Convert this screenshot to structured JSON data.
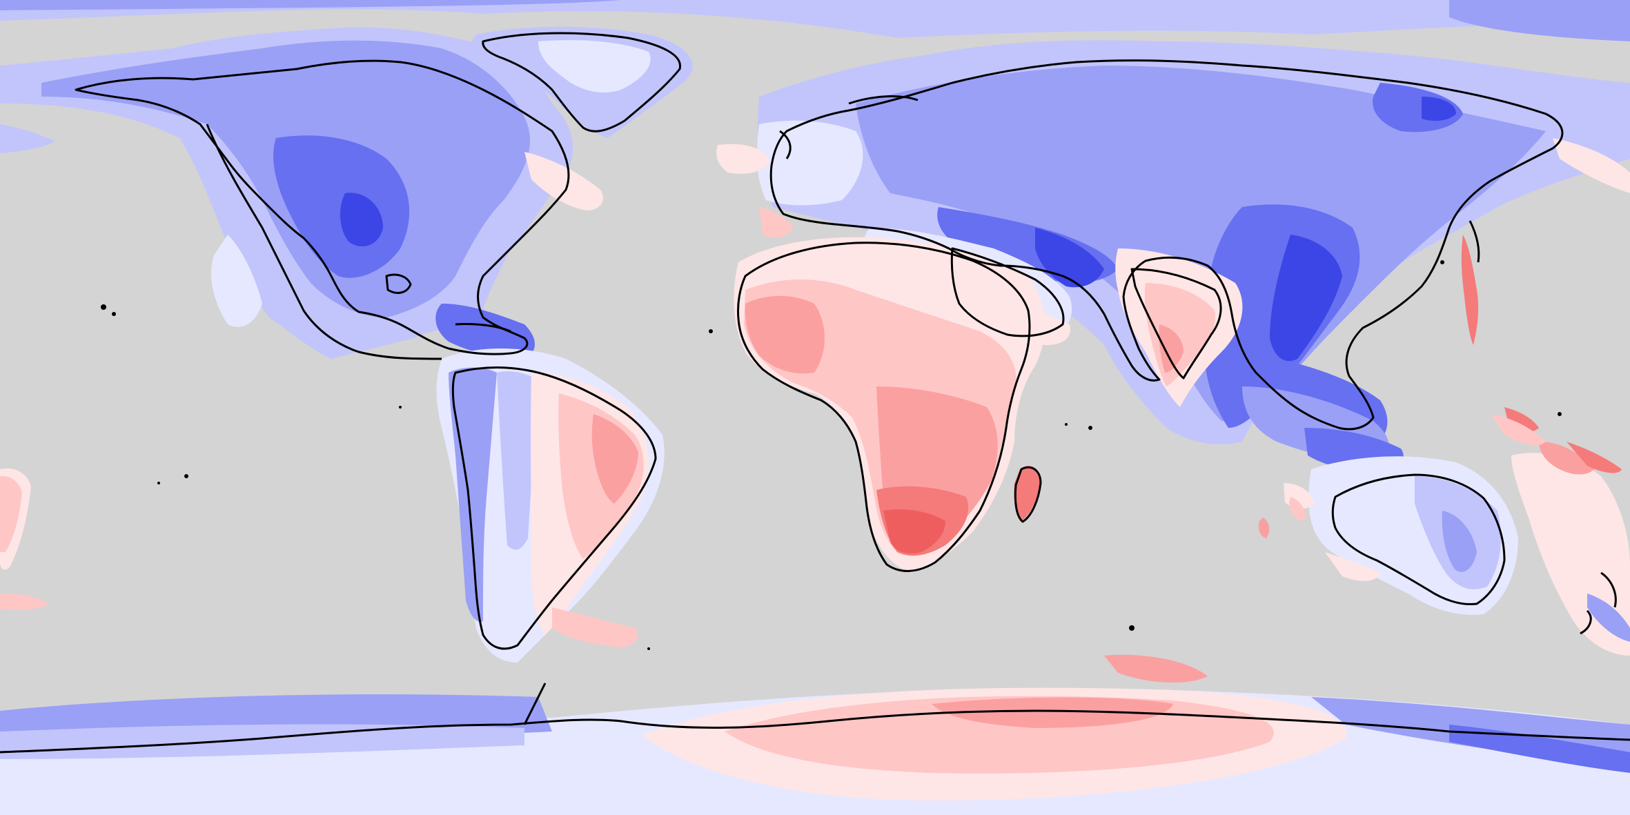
{
  "map": {
    "projection": "equirectangular",
    "extent": {
      "lon": [
        -180,
        180
      ],
      "lat": [
        -90,
        90
      ]
    },
    "background_color": "#d4d4d4",
    "coastline_color": "#000000",
    "palette": {
      "blue_4": "#3c45e6",
      "blue_3": "#6670f0",
      "blue_2": "#9aa0f6",
      "blue_1": "#c2c5fb",
      "blue_0": "#e6e8ff",
      "red_0": "#ffe6e6",
      "red_1": "#ffc6c6",
      "red_2": "#fba0a0",
      "red_3": "#f57a7a",
      "red_4": "#ee5e5e"
    },
    "legend": null
  }
}
